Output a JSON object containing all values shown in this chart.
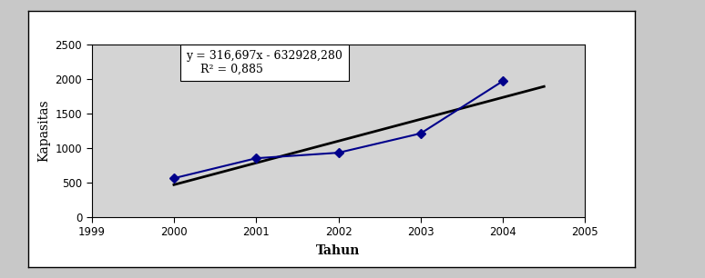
{
  "years": [
    2000,
    2001,
    2002,
    2003,
    2004
  ],
  "values": [
    560,
    850,
    930,
    1210,
    1970
  ],
  "slope": 316.697,
  "intercept": -632928.28,
  "trend_x_start": 2000,
  "trend_x_end": 2004.5,
  "equation_line1": "y = 316,697x - 632928,280",
  "equation_line2": "R",
  "r2_text": "R² = 0,885",
  "equation_full": "y = 316,697x - 632928,280",
  "xlabel": "Tahun",
  "ylabel": "Kapasitas",
  "xlim": [
    1999,
    2005
  ],
  "ylim": [
    0,
    2500
  ],
  "xticks": [
    1999,
    2000,
    2001,
    2002,
    2003,
    2004,
    2005
  ],
  "yticks": [
    0,
    500,
    1000,
    1500,
    2000,
    2500
  ],
  "data_color": "#00008B",
  "trend_color": "#000000",
  "plot_area_color": "#d4d4d4",
  "outer_bg": "#c8c8c8",
  "frame_bg": "#ffffff",
  "ann_x": 2000.15,
  "ann_y": 2420
}
